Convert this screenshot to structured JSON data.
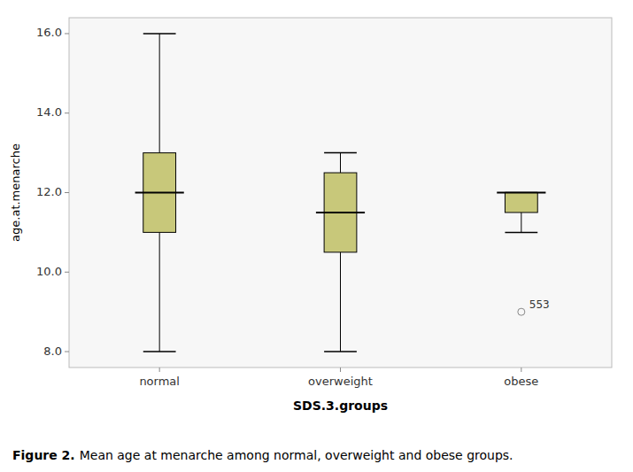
{
  "chart_data": {
    "type": "box",
    "xlabel": "SDS.3.groups",
    "ylabel": "age.at.menarche",
    "categories": [
      "normal",
      "overweight",
      "obese"
    ],
    "color": "#c8c87a",
    "boxes": [
      {
        "q1": 11.0,
        "median": 12.0,
        "q3": 13.0,
        "whisker_low": 8.0,
        "whisker_high": 16.0,
        "outliers": [],
        "outlier_labels": []
      },
      {
        "q1": 10.5,
        "median": 11.5,
        "q3": 12.5,
        "whisker_low": 8.0,
        "whisker_high": 13.0,
        "outliers": [],
        "outlier_labels": []
      },
      {
        "q1": 11.5,
        "median": 12.0,
        "q3": 12.0,
        "whisker_low": 11.0,
        "whisker_high": 12.0,
        "outliers": [
          9.0
        ],
        "outlier_labels": [
          "553"
        ]
      }
    ],
    "ylim": [
      7.6,
      16.4
    ],
    "yticks": [
      {
        "value": 8.0,
        "label": "8.0"
      },
      {
        "value": 10.0,
        "label": "10.0"
      },
      {
        "value": 12.0,
        "label": "12.0"
      },
      {
        "value": 14.0,
        "label": "14.0"
      },
      {
        "value": 16.0,
        "label": "16.0"
      }
    ],
    "grid": false,
    "caption_bold": "Figure 2.",
    "caption": "Mean age at menarche among normal, overweight and obese groups."
  }
}
